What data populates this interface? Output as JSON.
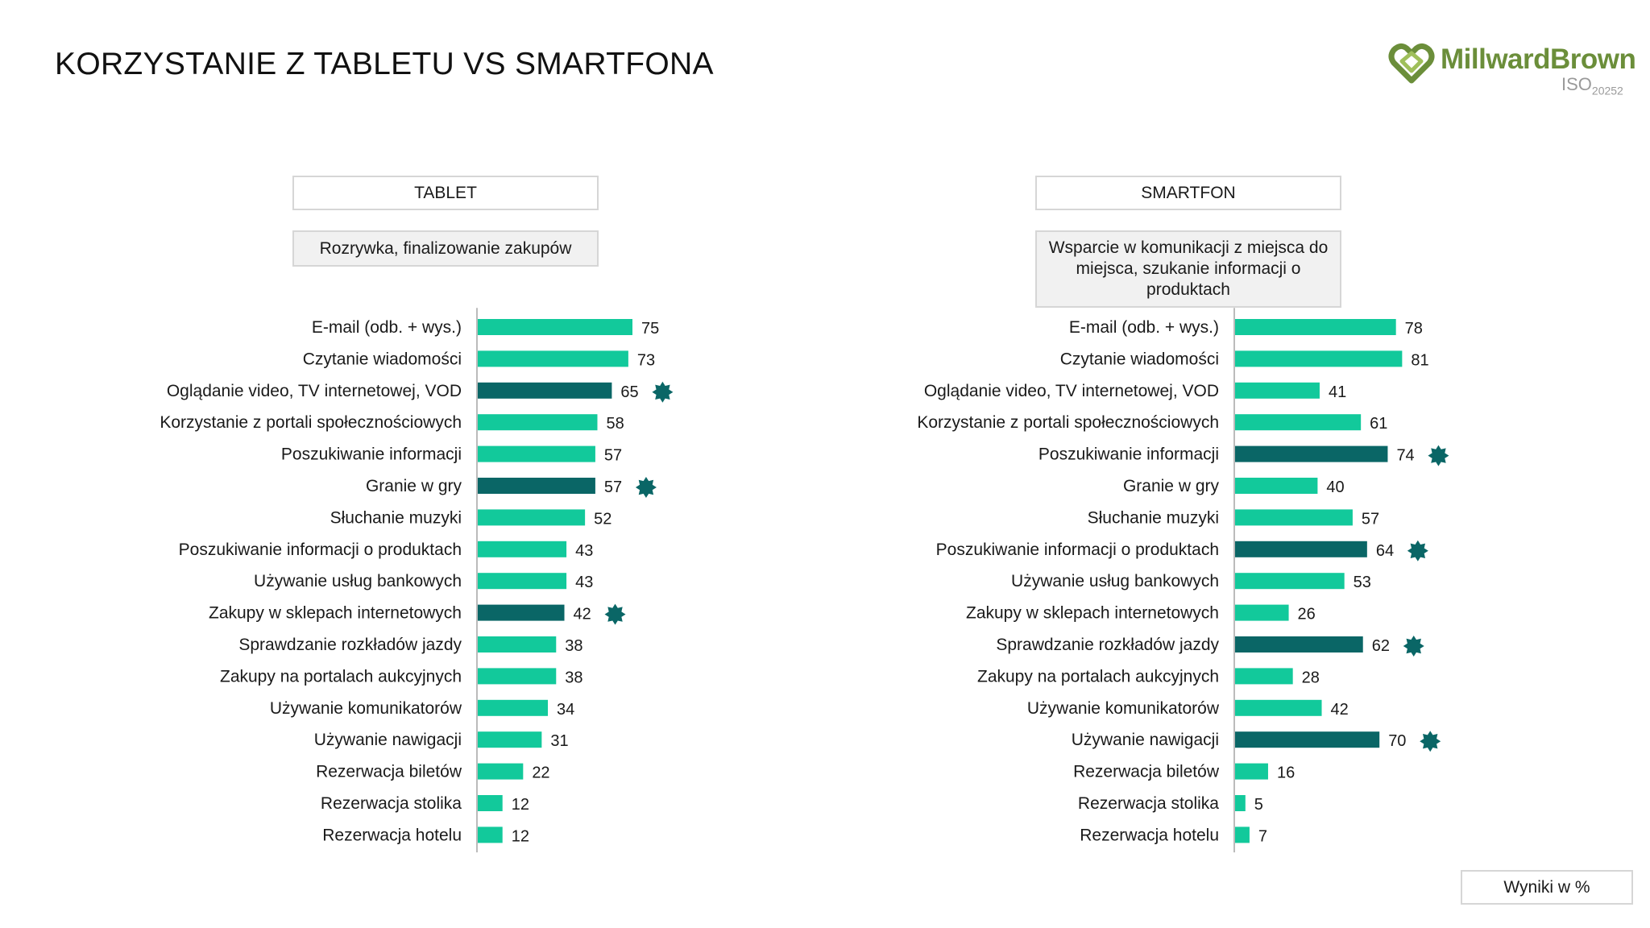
{
  "title": "KORZYSTANIE Z TABLETU VS SMARTFONA",
  "logo": {
    "name": "MillwardBrown",
    "iso": "ISO",
    "iso_num": "20252"
  },
  "footer_note": "Wyniki w %",
  "colors": {
    "bar_default": "#12c99b",
    "bar_highlight": "#0a6666",
    "star": "#0a6666",
    "axis": "#bbbbbb"
  },
  "panels": [
    {
      "heading": "TABLET",
      "subheading": "Rozrywka, finalizowanie zakupów"
    },
    {
      "heading": "SMARTFON",
      "subheading": "Wsparcie w komunikacji z miejsca do miejsca, szukanie informacji o produktach"
    }
  ],
  "chart_data": [
    {
      "type": "bar",
      "orientation": "horizontal",
      "categories": [
        "E-mail (odb. + wys.)",
        "Czytanie wiadomości",
        "Oglądanie video, TV internetowej, VOD",
        "Korzystanie z portali społecznościowych",
        "Poszukiwanie informacji",
        "Granie w gry",
        "Słuchanie muzyki",
        "Poszukiwanie informacji o produktach",
        "Używanie usług bankowych",
        "Zakupy w sklepach internetowych",
        "Sprawdzanie rozkładów jazdy",
        "Zakupy na portalach aukcyjnych",
        "Używanie komunikatorów",
        "Używanie nawigacji",
        "Rezerwacja biletów",
        "Rezerwacja stolika",
        "Rezerwacja hotelu"
      ],
      "values": [
        75,
        73,
        65,
        58,
        57,
        57,
        52,
        43,
        43,
        42,
        38,
        38,
        34,
        31,
        22,
        12,
        12
      ],
      "highlighted": [
        false,
        false,
        true,
        false,
        false,
        true,
        false,
        false,
        false,
        true,
        false,
        false,
        false,
        false,
        false,
        false,
        false
      ],
      "xlim": [
        0,
        100
      ]
    },
    {
      "type": "bar",
      "orientation": "horizontal",
      "categories": [
        "E-mail (odb. + wys.)",
        "Czytanie wiadomości",
        "Oglądanie video, TV internetowej, VOD",
        "Korzystanie z portali społecznościowych",
        "Poszukiwanie informacji",
        "Granie w gry",
        "Słuchanie muzyki",
        "Poszukiwanie informacji o produktach",
        "Używanie usług bankowych",
        "Zakupy w sklepach internetowych",
        "Sprawdzanie rozkładów jazdy",
        "Zakupy na portalach aukcyjnych",
        "Używanie komunikatorów",
        "Używanie nawigacji",
        "Rezerwacja biletów",
        "Rezerwacja stolika",
        "Rezerwacja hotelu"
      ],
      "values": [
        78,
        81,
        41,
        61,
        74,
        40,
        57,
        64,
        53,
        26,
        62,
        28,
        42,
        70,
        16,
        5,
        7
      ],
      "highlighted": [
        false,
        false,
        false,
        false,
        true,
        false,
        false,
        true,
        false,
        false,
        true,
        false,
        false,
        true,
        false,
        false,
        false
      ],
      "xlim": [
        0,
        100
      ]
    }
  ]
}
